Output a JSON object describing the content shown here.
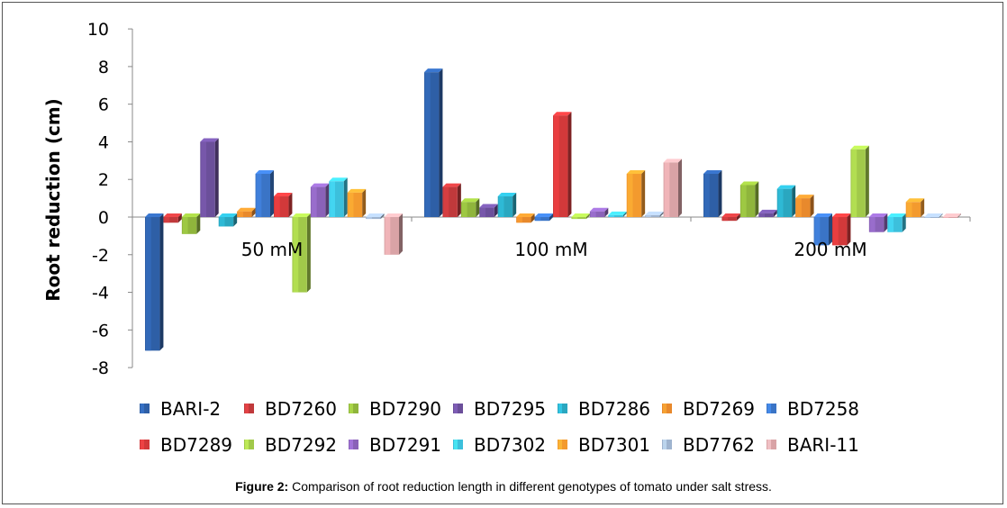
{
  "chart_data": {
    "type": "bar",
    "title": "",
    "xlabel": "",
    "ylabel": "Root reduction (cm)",
    "ylim": [
      -8,
      10
    ],
    "yticks": [
      -8,
      -6,
      -4,
      -2,
      0,
      2,
      4,
      6,
      8,
      10
    ],
    "grid": false,
    "legend_position": "bottom",
    "categories": [
      "50 mM",
      "100 mM",
      "200 mM"
    ],
    "series": [
      {
        "name": "BARI-2",
        "color": "#2E5FA6",
        "values": [
          -7.1,
          7.7,
          2.3
        ]
      },
      {
        "name": "BD7260",
        "color": "#C0393B",
        "values": [
          -0.3,
          1.6,
          -0.2
        ]
      },
      {
        "name": "BD7290",
        "color": "#8FB53C",
        "values": [
          -0.9,
          0.8,
          1.7
        ]
      },
      {
        "name": "BD7295",
        "color": "#6B4F9A",
        "values": [
          4.0,
          0.5,
          0.2
        ]
      },
      {
        "name": "BD7286",
        "color": "#2AA7C0",
        "values": [
          -0.5,
          1.1,
          1.5
        ]
      },
      {
        "name": "BD7269",
        "color": "#E8892C",
        "values": [
          0.3,
          -0.3,
          1.0
        ]
      },
      {
        "name": "BD7258",
        "color": "#3A74C6",
        "values": [
          2.3,
          -0.2,
          -1.5
        ]
      },
      {
        "name": "BD7289",
        "color": "#D2393A",
        "values": [
          1.1,
          5.4,
          -1.5
        ]
      },
      {
        "name": "BD7292",
        "color": "#A1C94A",
        "values": [
          -4.0,
          -0.1,
          3.6
        ]
      },
      {
        "name": "BD7291",
        "color": "#8A62B8",
        "values": [
          1.6,
          0.3,
          -0.8
        ]
      },
      {
        "name": "BD7302",
        "color": "#3CC0DC",
        "values": [
          1.9,
          0.1,
          -0.8
        ]
      },
      {
        "name": "BD7301",
        "color": "#F39A2E",
        "values": [
          1.3,
          2.3,
          0.8
        ]
      },
      {
        "name": "BD7762",
        "color": "#9FB4CF",
        "values": [
          -0.1,
          0.1,
          0.0
        ]
      },
      {
        "name": "BARI-11",
        "color": "#D9A3A6",
        "values": [
          -2.0,
          2.9,
          0.0
        ]
      }
    ]
  },
  "caption": {
    "label": "Figure 2:",
    "text": " Comparison of root reduction length in different genotypes of tomato under salt stress."
  }
}
